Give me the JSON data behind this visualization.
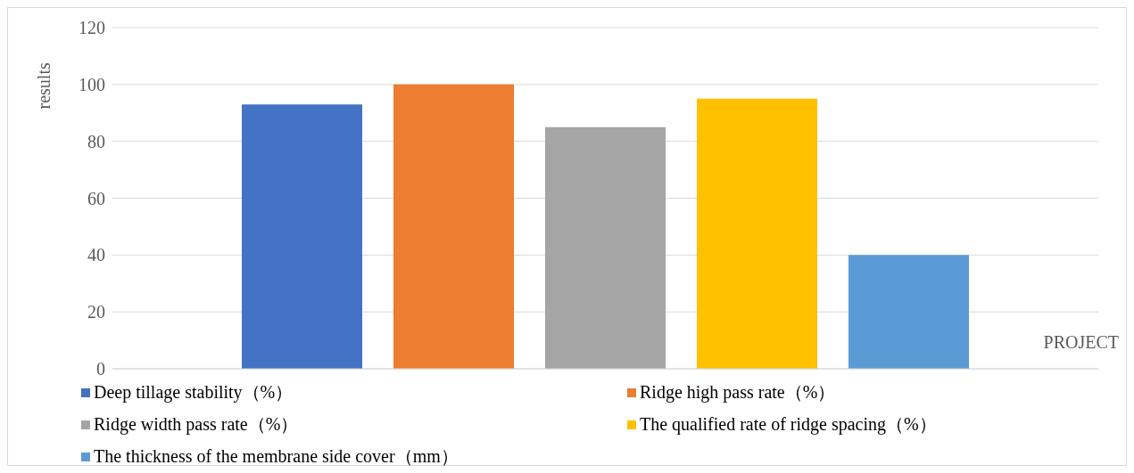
{
  "chart_data": {
    "type": "bar",
    "ylabel": "results",
    "xlabel": "PROJECT",
    "categories": [
      null
    ],
    "series": [
      {
        "name": "Deep tillage stability（%）",
        "color": "#4472c4",
        "values": [
          93
        ]
      },
      {
        "name": "Ridge high pass rate（%）",
        "color": "#ed7d31",
        "values": [
          100
        ]
      },
      {
        "name": "Ridge width pass rate（%）",
        "color": "#a5a5a5",
        "values": [
          85
        ]
      },
      {
        "name": "The qualified rate of ridge spacing（%）",
        "color": "#ffc000",
        "values": [
          95
        ]
      },
      {
        "name": "The thickness of the membrane side cover（mm）",
        "color": "#5b9bd5",
        "values": [
          40
        ]
      }
    ],
    "ylim": [
      0,
      120
    ],
    "yticks": [
      0,
      20,
      40,
      60,
      80,
      100,
      120
    ],
    "grid": "y",
    "legend": "bottom"
  }
}
